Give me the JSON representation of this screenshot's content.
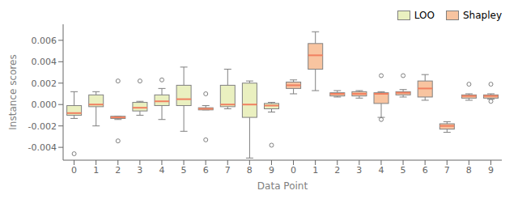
{
  "chart_data": {
    "type": "box",
    "xlabel": "Data Point",
    "ylabel": "Instance scores",
    "categories": [
      "0",
      "1",
      "2",
      "3",
      "4",
      "5",
      "6",
      "7",
      "8",
      "9",
      "0",
      "1",
      "2",
      "3",
      "4",
      "5",
      "6",
      "7",
      "8",
      "9"
    ],
    "series": [
      {
        "name": "LOO",
        "color": "#eaf0c0",
        "boxes": [
          {
            "med": -0.0008,
            "q1": -0.001,
            "q3": -0.0001,
            "whislo": -0.0013,
            "whishi": 0.0012,
            "fliers": [
              -0.0046
            ]
          },
          {
            "med": 0.0,
            "q1": -0.0002,
            "q3": 0.0009,
            "whislo": -0.002,
            "whishi": 0.0012,
            "fliers": []
          },
          {
            "med": -0.0012,
            "q1": -0.0013,
            "q3": -0.0011,
            "whislo": -0.0014,
            "whishi": -0.0011,
            "fliers": [
              0.0022,
              -0.0034
            ]
          },
          {
            "med": -0.0003,
            "q1": -0.0006,
            "q3": 0.0002,
            "whislo": -0.001,
            "whishi": 0.0003,
            "fliers": [
              0.0022
            ]
          },
          {
            "med": 0.0003,
            "q1": -0.0001,
            "q3": 0.0009,
            "whislo": -0.0014,
            "whishi": 0.0015,
            "fliers": [
              0.0023
            ]
          },
          {
            "med": 0.0005,
            "q1": -0.0001,
            "q3": 0.0018,
            "whislo": -0.0025,
            "whishi": 0.0035,
            "fliers": []
          },
          {
            "med": -0.0004,
            "q1": -0.0005,
            "q3": -0.0003,
            "whislo": -0.0005,
            "whishi": -0.0001,
            "fliers": [
              0.001,
              -0.0033
            ]
          },
          {
            "med": 0.0,
            "q1": -0.0002,
            "q3": 0.0018,
            "whislo": -0.0004,
            "whishi": 0.0033,
            "fliers": []
          },
          {
            "med": 0.0,
            "q1": -0.0012,
            "q3": 0.002,
            "whislo": -0.005,
            "whishi": 0.0022,
            "fliers": []
          },
          {
            "med": -0.0001,
            "q1": -0.0004,
            "q3": 0.0001,
            "whislo": -0.0007,
            "whishi": 0.0002,
            "fliers": [
              -0.0038
            ]
          },
          null,
          null,
          null,
          null,
          null,
          null,
          null,
          null,
          null,
          null
        ]
      },
      {
        "name": "Shapley",
        "color": "#f8c4a0",
        "boxes": [
          null,
          null,
          null,
          null,
          null,
          null,
          null,
          null,
          null,
          null,
          {
            "med": 0.0018,
            "q1": 0.0015,
            "q3": 0.0021,
            "whislo": 0.001,
            "whishi": 0.0023,
            "fliers": []
          },
          {
            "med": 0.0046,
            "q1": 0.0033,
            "q3": 0.0057,
            "whislo": 0.0013,
            "whishi": 0.0068,
            "fliers": []
          },
          {
            "med": 0.001,
            "q1": 0.0008,
            "q3": 0.0011,
            "whislo": 0.0007,
            "whishi": 0.0013,
            "fliers": []
          },
          {
            "med": 0.001,
            "q1": 0.0008,
            "q3": 0.0012,
            "whislo": 0.0006,
            "whishi": 0.0013,
            "fliers": []
          },
          {
            "med": 0.001,
            "q1": 0.0001,
            "q3": 0.0011,
            "whislo": -0.0012,
            "whishi": 0.0012,
            "fliers": [
              0.0027,
              -0.0014
            ]
          },
          {
            "med": 0.0011,
            "q1": 0.0009,
            "q3": 0.0012,
            "whislo": 0.0007,
            "whishi": 0.0014,
            "fliers": [
              0.0027
            ]
          },
          {
            "med": 0.0015,
            "q1": 0.0007,
            "q3": 0.0022,
            "whislo": 0.0004,
            "whishi": 0.0028,
            "fliers": []
          },
          {
            "med": -0.002,
            "q1": -0.0023,
            "q3": -0.0018,
            "whislo": -0.0026,
            "whishi": -0.0016,
            "fliers": []
          },
          {
            "med": 0.0008,
            "q1": 0.0006,
            "q3": 0.0009,
            "whislo": 0.0004,
            "whishi": 0.001,
            "fliers": [
              0.0019
            ]
          },
          {
            "med": 0.0008,
            "q1": 0.0006,
            "q3": 0.0009,
            "whislo": 0.0005,
            "whishi": 0.001,
            "fliers": [
              0.0019,
              0.0003
            ]
          }
        ]
      }
    ],
    "ylim": [
      -0.0052,
      0.0075
    ],
    "yticks": [
      -0.004,
      -0.002,
      {
        "value": 0,
        "label": "0.000"
      },
      0.002,
      0.004,
      0.006
    ],
    "grid": false,
    "legend": "upper right"
  }
}
